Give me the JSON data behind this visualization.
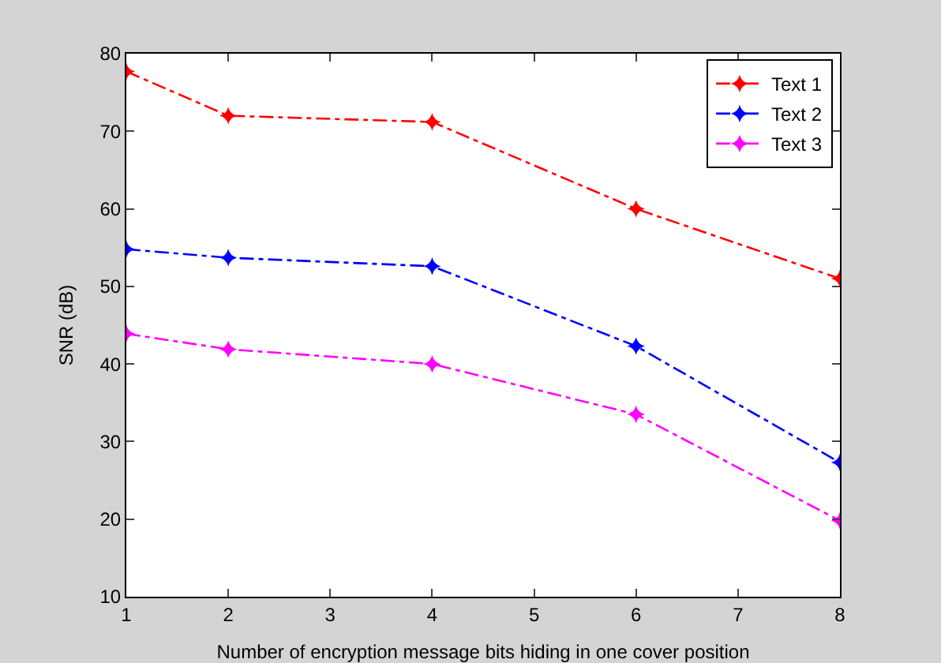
{
  "chart_data": {
    "type": "line",
    "xlabel": "Number of encryption message bits hiding in one cover position",
    "ylabel": "SNR (dB)",
    "x": [
      1,
      2,
      4,
      6,
      8
    ],
    "series": [
      {
        "name": "Text 1",
        "color": "#ff0000",
        "values": [
          77.7,
          72,
          71.2,
          60,
          51
        ]
      },
      {
        "name": "Text 2",
        "color": "#0000ff",
        "values": [
          54.8,
          53.7,
          52.6,
          42.3,
          27.3
        ]
      },
      {
        "name": "Text 3",
        "color": "#ff00ff",
        "values": [
          43.9,
          41.9,
          40,
          33.5,
          19.8
        ]
      }
    ],
    "xlim": [
      1,
      8
    ],
    "xticks": [
      1,
      2,
      3,
      4,
      5,
      6,
      7,
      8
    ],
    "ylim": [
      10,
      80
    ],
    "yticks": [
      10,
      20,
      30,
      40,
      50,
      60,
      70,
      80
    ],
    "grid": false,
    "legend": "top right",
    "marker": "star",
    "line_style": "dashed"
  }
}
